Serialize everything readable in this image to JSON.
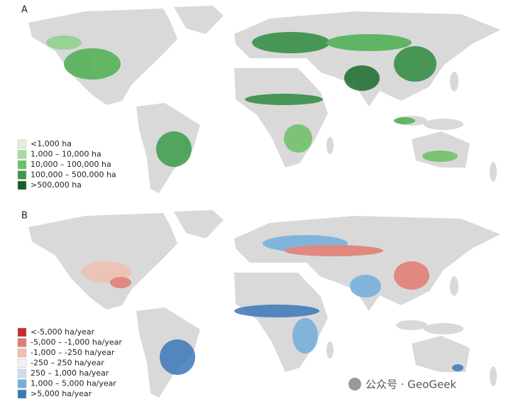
{
  "panels": [
    {
      "label": "A",
      "legend": [
        {
          "label": "<1,000 ha",
          "color": "#dff2d8"
        },
        {
          "label": "1,000 – 10,000 ha",
          "color": "#a8dc9c"
        },
        {
          "label": "10,000 – 100,000 ha",
          "color": "#6cc065"
        },
        {
          "label": "100,000 – 500,000 ha",
          "color": "#3a9a48"
        },
        {
          "label": ">500,000 ha",
          "color": "#155c28"
        }
      ]
    },
    {
      "label": "B",
      "legend": [
        {
          "label": "<-5,000 ha/year",
          "color": "#c62a2a"
        },
        {
          "label": "-5,000 – -1,000 ha/year",
          "color": "#e37a72"
        },
        {
          "label": "-1,000 – -250 ha/year",
          "color": "#efbfae"
        },
        {
          "label": "-250 – 250 ha/year",
          "color": "#f2f2f2"
        },
        {
          "label": "250 – 1,000 ha/year",
          "color": "#c7dff0"
        },
        {
          "label": "1,000 – 5,000 ha/year",
          "color": "#72aedb"
        },
        {
          "label": ">5,000 ha/year",
          "color": "#3b78b8"
        }
      ]
    }
  ],
  "watermark": "公众号 · GeoGeek"
}
